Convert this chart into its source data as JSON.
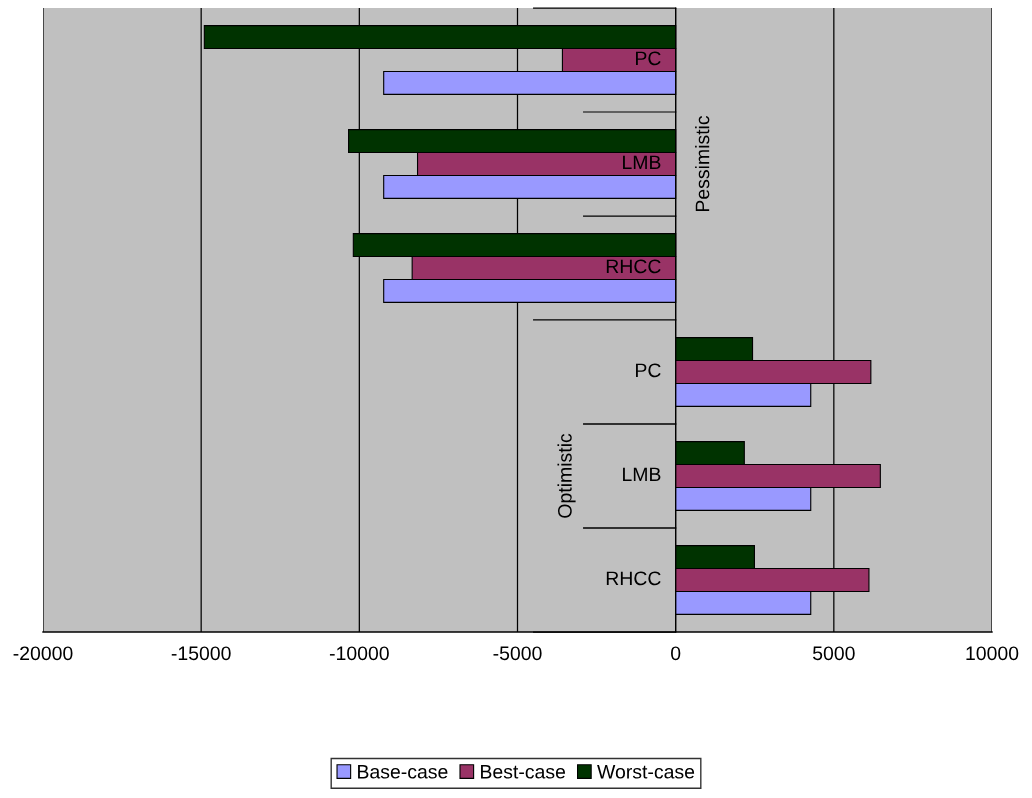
{
  "chart_data": {
    "type": "bar",
    "orientation": "horizontal",
    "categories": [
      "PC",
      "LMB",
      "RHCC",
      "PC",
      "LMB",
      "RHCC"
    ],
    "series": [
      {
        "name": "Base-case",
        "color": "#9999ff",
        "values": [
          -9230,
          -9230,
          -9230,
          4270,
          4270,
          4270
        ]
      },
      {
        "name": "Best-case",
        "color": "#993366",
        "values": [
          -3580,
          -8160,
          -8330,
          6170,
          6470,
          6110
        ]
      },
      {
        "name": "Worst-case",
        "color": "#003300",
        "values": [
          -14900,
          -10340,
          -10190,
          2430,
          2170,
          2490
        ]
      }
    ],
    "annotations": [
      "Pessimistic",
      "Optimistic"
    ],
    "xlim": [
      -20000,
      10000
    ],
    "xticks": [
      -20000,
      -15000,
      -10000,
      -5000,
      0,
      5000,
      10000
    ],
    "grid": "x",
    "legend": "bottom"
  }
}
